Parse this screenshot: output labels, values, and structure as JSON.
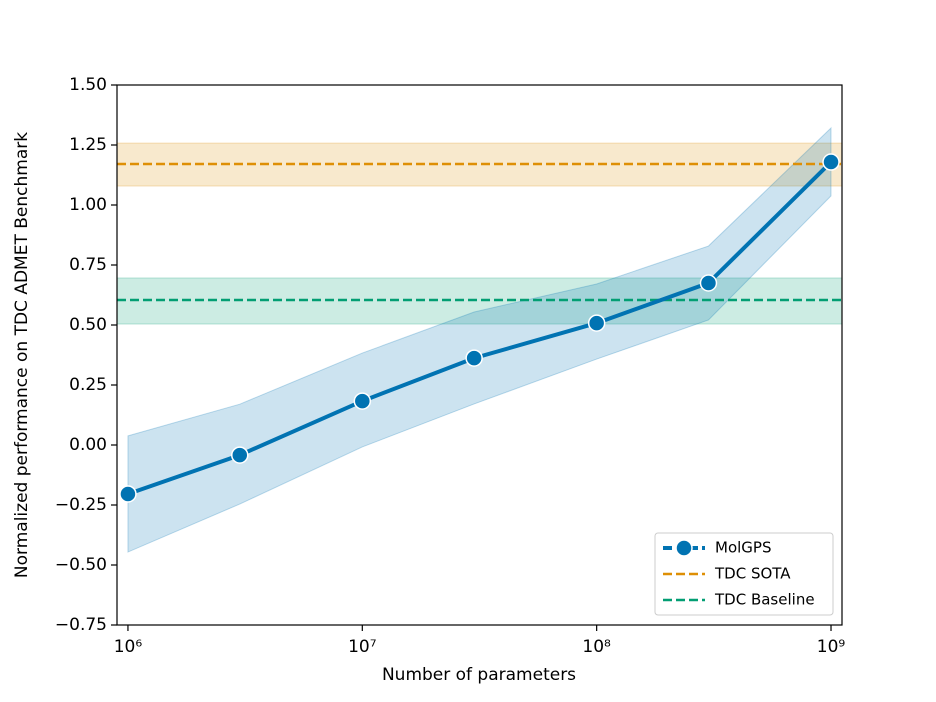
{
  "chart_data": {
    "type": "line",
    "xlabel": "Number of parameters",
    "ylabel": "Normalized performance on TDC ADMET Benchmark",
    "xscale": "log",
    "x": [
      1000000,
      3000000,
      10000000,
      30000000,
      100000000,
      300000000,
      1000000000
    ],
    "xlim": [
      898000,
      1114000000
    ],
    "xticks": [
      {
        "value": 1000000,
        "label": "10⁶"
      },
      {
        "value": 10000000,
        "label": "10⁷"
      },
      {
        "value": 100000000,
        "label": "10⁸"
      },
      {
        "value": 1000000000,
        "label": "10⁹"
      }
    ],
    "ylim": [
      -0.75,
      1.5
    ],
    "yticks": [
      {
        "value": -0.75,
        "label": "−0.75"
      },
      {
        "value": -0.5,
        "label": "−0.50"
      },
      {
        "value": -0.25,
        "label": "−0.25"
      },
      {
        "value": 0,
        "label": "0.00"
      },
      {
        "value": 0.25,
        "label": "0.25"
      },
      {
        "value": 0.5,
        "label": "0.50"
      },
      {
        "value": 0.75,
        "label": "0.75"
      },
      {
        "value": 1,
        "label": "1.00"
      },
      {
        "value": 1.25,
        "label": "1.25"
      },
      {
        "value": 1.5,
        "label": "1.50"
      }
    ],
    "series": [
      {
        "name": "MolGPS",
        "color": "#0173b2",
        "values": [
          -0.204,
          -0.042,
          0.183,
          0.362,
          0.508,
          0.675,
          1.179
        ],
        "lower": [
          -0.446,
          -0.246,
          -0.008,
          0.171,
          0.358,
          0.521,
          1.038
        ],
        "upper": [
          0.038,
          0.17,
          0.383,
          0.554,
          0.671,
          0.829,
          1.321
        ]
      }
    ],
    "hlines": [
      {
        "name": "TDC SOTA",
        "color": "#de8f05",
        "value": 1.171,
        "lower": 1.079,
        "upper": 1.258
      },
      {
        "name": "TDC Baseline",
        "color": "#029e73",
        "value": 0.604,
        "lower": 0.504,
        "upper": 0.696
      }
    ],
    "legend": "lower right"
  }
}
